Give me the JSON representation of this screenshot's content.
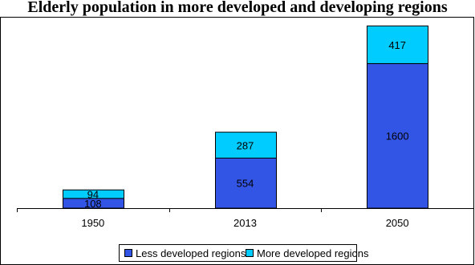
{
  "chart_data": {
    "type": "bar",
    "stacked": true,
    "title": "Elderly population in more developed and developing regions",
    "categories": [
      "1950",
      "2013",
      "2050"
    ],
    "series": [
      {
        "name": "Less developed regions",
        "values": [
          108,
          554,
          1600
        ],
        "color": "#3355e6"
      },
      {
        "name": "More developed regions",
        "values": [
          94,
          287,
          417
        ],
        "color": "#00ccff"
      }
    ],
    "ylim": [
      0,
      2100
    ],
    "grid": false,
    "legend_position": "bottom"
  }
}
